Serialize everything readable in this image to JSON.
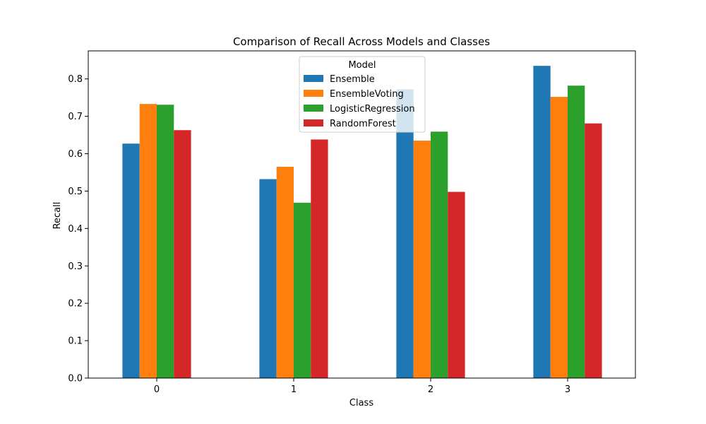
{
  "chart_data": {
    "type": "bar",
    "title": "Comparison of Recall Across Models and Classes",
    "xlabel": "Class",
    "ylabel": "Recall",
    "categories": [
      "0",
      "1",
      "2",
      "3"
    ],
    "ylim": [
      0,
      0.875
    ],
    "yticks": [
      "0.0",
      "0.1",
      "0.2",
      "0.3",
      "0.4",
      "0.5",
      "0.6",
      "0.7",
      "0.8"
    ],
    "grid": false,
    "legend": {
      "title": "Model",
      "placement": "top-center"
    },
    "series": [
      {
        "name": "Ensemble",
        "color": "#1f77b4",
        "values": [
          0.627,
          0.532,
          0.772,
          0.835
        ]
      },
      {
        "name": "EnsembleVoting",
        "color": "#ff7f0e",
        "values": [
          0.733,
          0.565,
          0.635,
          0.752
        ]
      },
      {
        "name": "LogisticRegression",
        "color": "#2ca02c",
        "values": [
          0.731,
          0.469,
          0.659,
          0.782
        ]
      },
      {
        "name": "RandomForest",
        "color": "#d62728",
        "values": [
          0.663,
          0.638,
          0.498,
          0.681
        ]
      }
    ]
  }
}
